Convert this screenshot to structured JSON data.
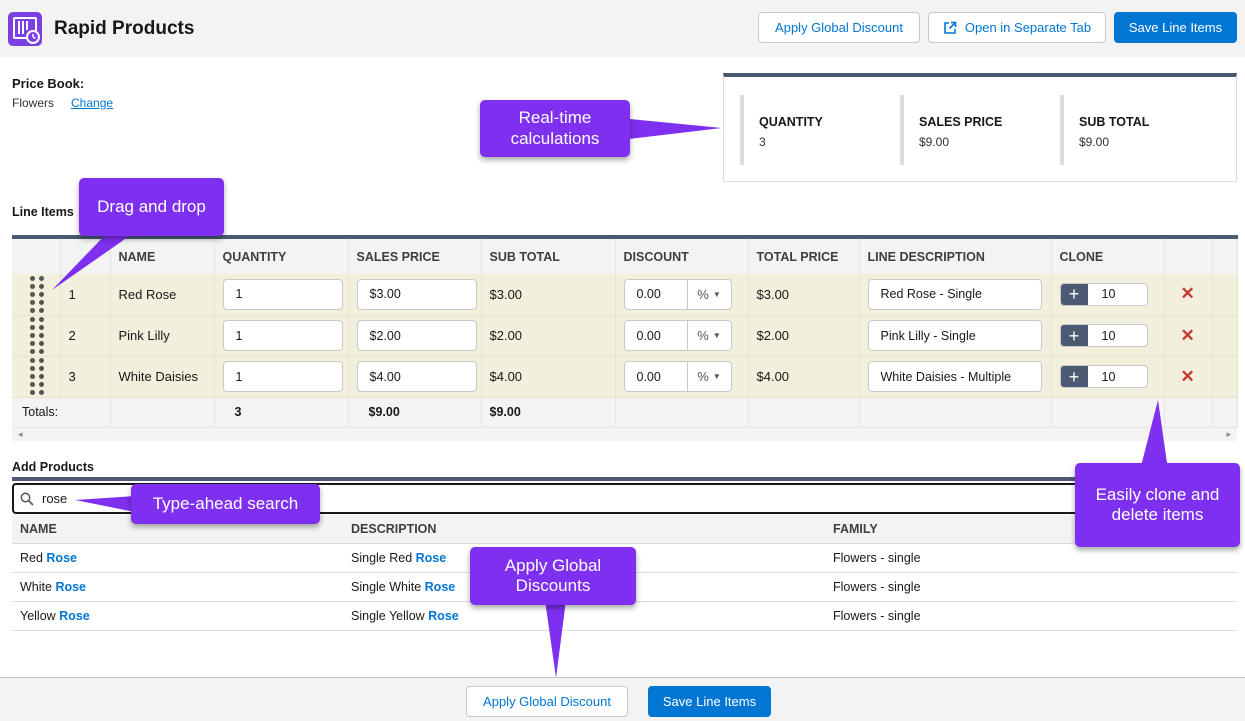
{
  "header": {
    "title": "Rapid Products",
    "apply_discount_label": "Apply Global Discount",
    "open_tab_label": "Open in Separate Tab",
    "save_label": "Save Line Items"
  },
  "price_book": {
    "label": "Price Book:",
    "value": "Flowers",
    "change_label": "Change"
  },
  "summary": {
    "quantity_label": "QUANTITY",
    "quantity_value": "3",
    "sales_price_label": "SALES PRICE",
    "sales_price_value": "$9.00",
    "sub_total_label": "SUB TOTAL",
    "sub_total_value": "$9.00"
  },
  "line_items": {
    "label": "Line Items",
    "columns": [
      "NAME",
      "QUANTITY",
      "SALES PRICE",
      "SUB TOTAL",
      "DISCOUNT",
      "TOTAL PRICE",
      "LINE DESCRIPTION",
      "CLONE"
    ],
    "rows": [
      {
        "num": "1",
        "name": "Red Rose",
        "quantity": "1",
        "sales_price": "$3.00",
        "sub_total": "$3.00",
        "discount": "0.00",
        "discount_type": "%",
        "total_price": "$3.00",
        "description": "Red Rose - Single",
        "clone_count": "10"
      },
      {
        "num": "2",
        "name": "Pink Lilly",
        "quantity": "1",
        "sales_price": "$2.00",
        "sub_total": "$2.00",
        "discount": "0.00",
        "discount_type": "%",
        "total_price": "$2.00",
        "description": "Pink Lilly - Single",
        "clone_count": "10"
      },
      {
        "num": "3",
        "name": "White Daisies",
        "quantity": "1",
        "sales_price": "$4.00",
        "sub_total": "$4.00",
        "discount": "0.00",
        "discount_type": "%",
        "total_price": "$4.00",
        "description": "White Daisies - Multiple",
        "clone_count": "10"
      }
    ],
    "totals": {
      "label": "Totals:",
      "quantity": "3",
      "sales_price": "$9.00",
      "sub_total": "$9.00"
    }
  },
  "add_products": {
    "label": "Add Products",
    "search_value": "rose",
    "columns": [
      "NAME",
      "DESCRIPTION",
      "FAMILY"
    ],
    "rows": [
      {
        "name_prefix": "Red ",
        "name_match": "Rose",
        "desc_prefix": "Single Red ",
        "desc_match": "Rose",
        "family": "Flowers - single"
      },
      {
        "name_prefix": "White ",
        "name_match": "Rose",
        "desc_prefix": "Single White ",
        "desc_match": "Rose",
        "family": "Flowers - single"
      },
      {
        "name_prefix": "Yellow ",
        "name_match": "Rose",
        "desc_prefix": "Single Yellow ",
        "desc_match": "Rose",
        "family": "Flowers - single"
      }
    ]
  },
  "footer": {
    "apply_discount_label": "Apply Global Discount",
    "save_label": "Save Line Items"
  },
  "callouts": {
    "realtime": "Real-time calculations",
    "drag": "Drag and drop",
    "typeahead": "Type-ahead search",
    "clone": "Easily clone and delete items",
    "global": "Apply Global Discounts"
  },
  "colors": {
    "brand": "#0176d3",
    "callout": "#7e2ff0",
    "row_bg": "#f2efdc",
    "header_bar": "#4b5a72",
    "delete": "#c23934"
  },
  "icons": {
    "app": "product-calendar-icon",
    "open_tab": "external-link-icon",
    "search": "search-icon",
    "drag": "drag-handle-icon",
    "clone": "plus-icon",
    "delete": "close-icon",
    "dropdown": "chevron-down-icon"
  }
}
